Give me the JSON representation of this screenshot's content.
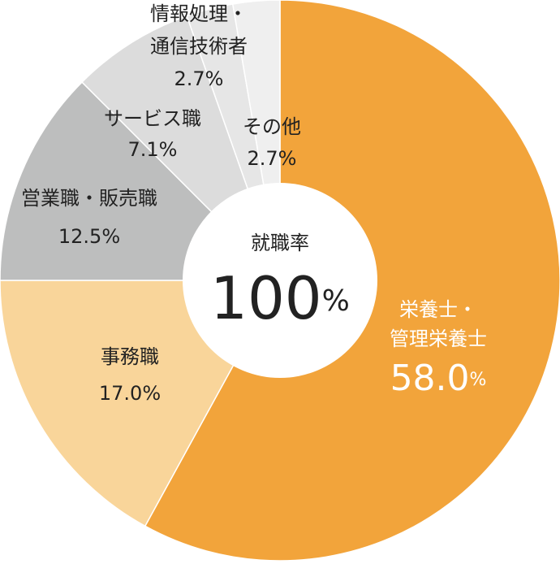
{
  "chart_data": {
    "type": "donut",
    "center_title": "就職率",
    "center_label": "100%",
    "categories": [
      "栄養士・\n管理栄養士",
      "事務職",
      "営業職・販売職",
      "サービス職",
      "情報処理・\n通信技術者",
      "その他"
    ],
    "values": [
      58.0,
      17.0,
      12.5,
      7.1,
      2.7,
      2.7
    ],
    "value_labels": [
      "58.0%",
      "17.0%",
      "12.5%",
      "7.1%",
      "2.7%",
      "2.7%"
    ],
    "colors": [
      "#f2a43b",
      "#f9d59a",
      "#bdbebe",
      "#dcdcdc",
      "#e6e6e6",
      "#efefef"
    ]
  }
}
